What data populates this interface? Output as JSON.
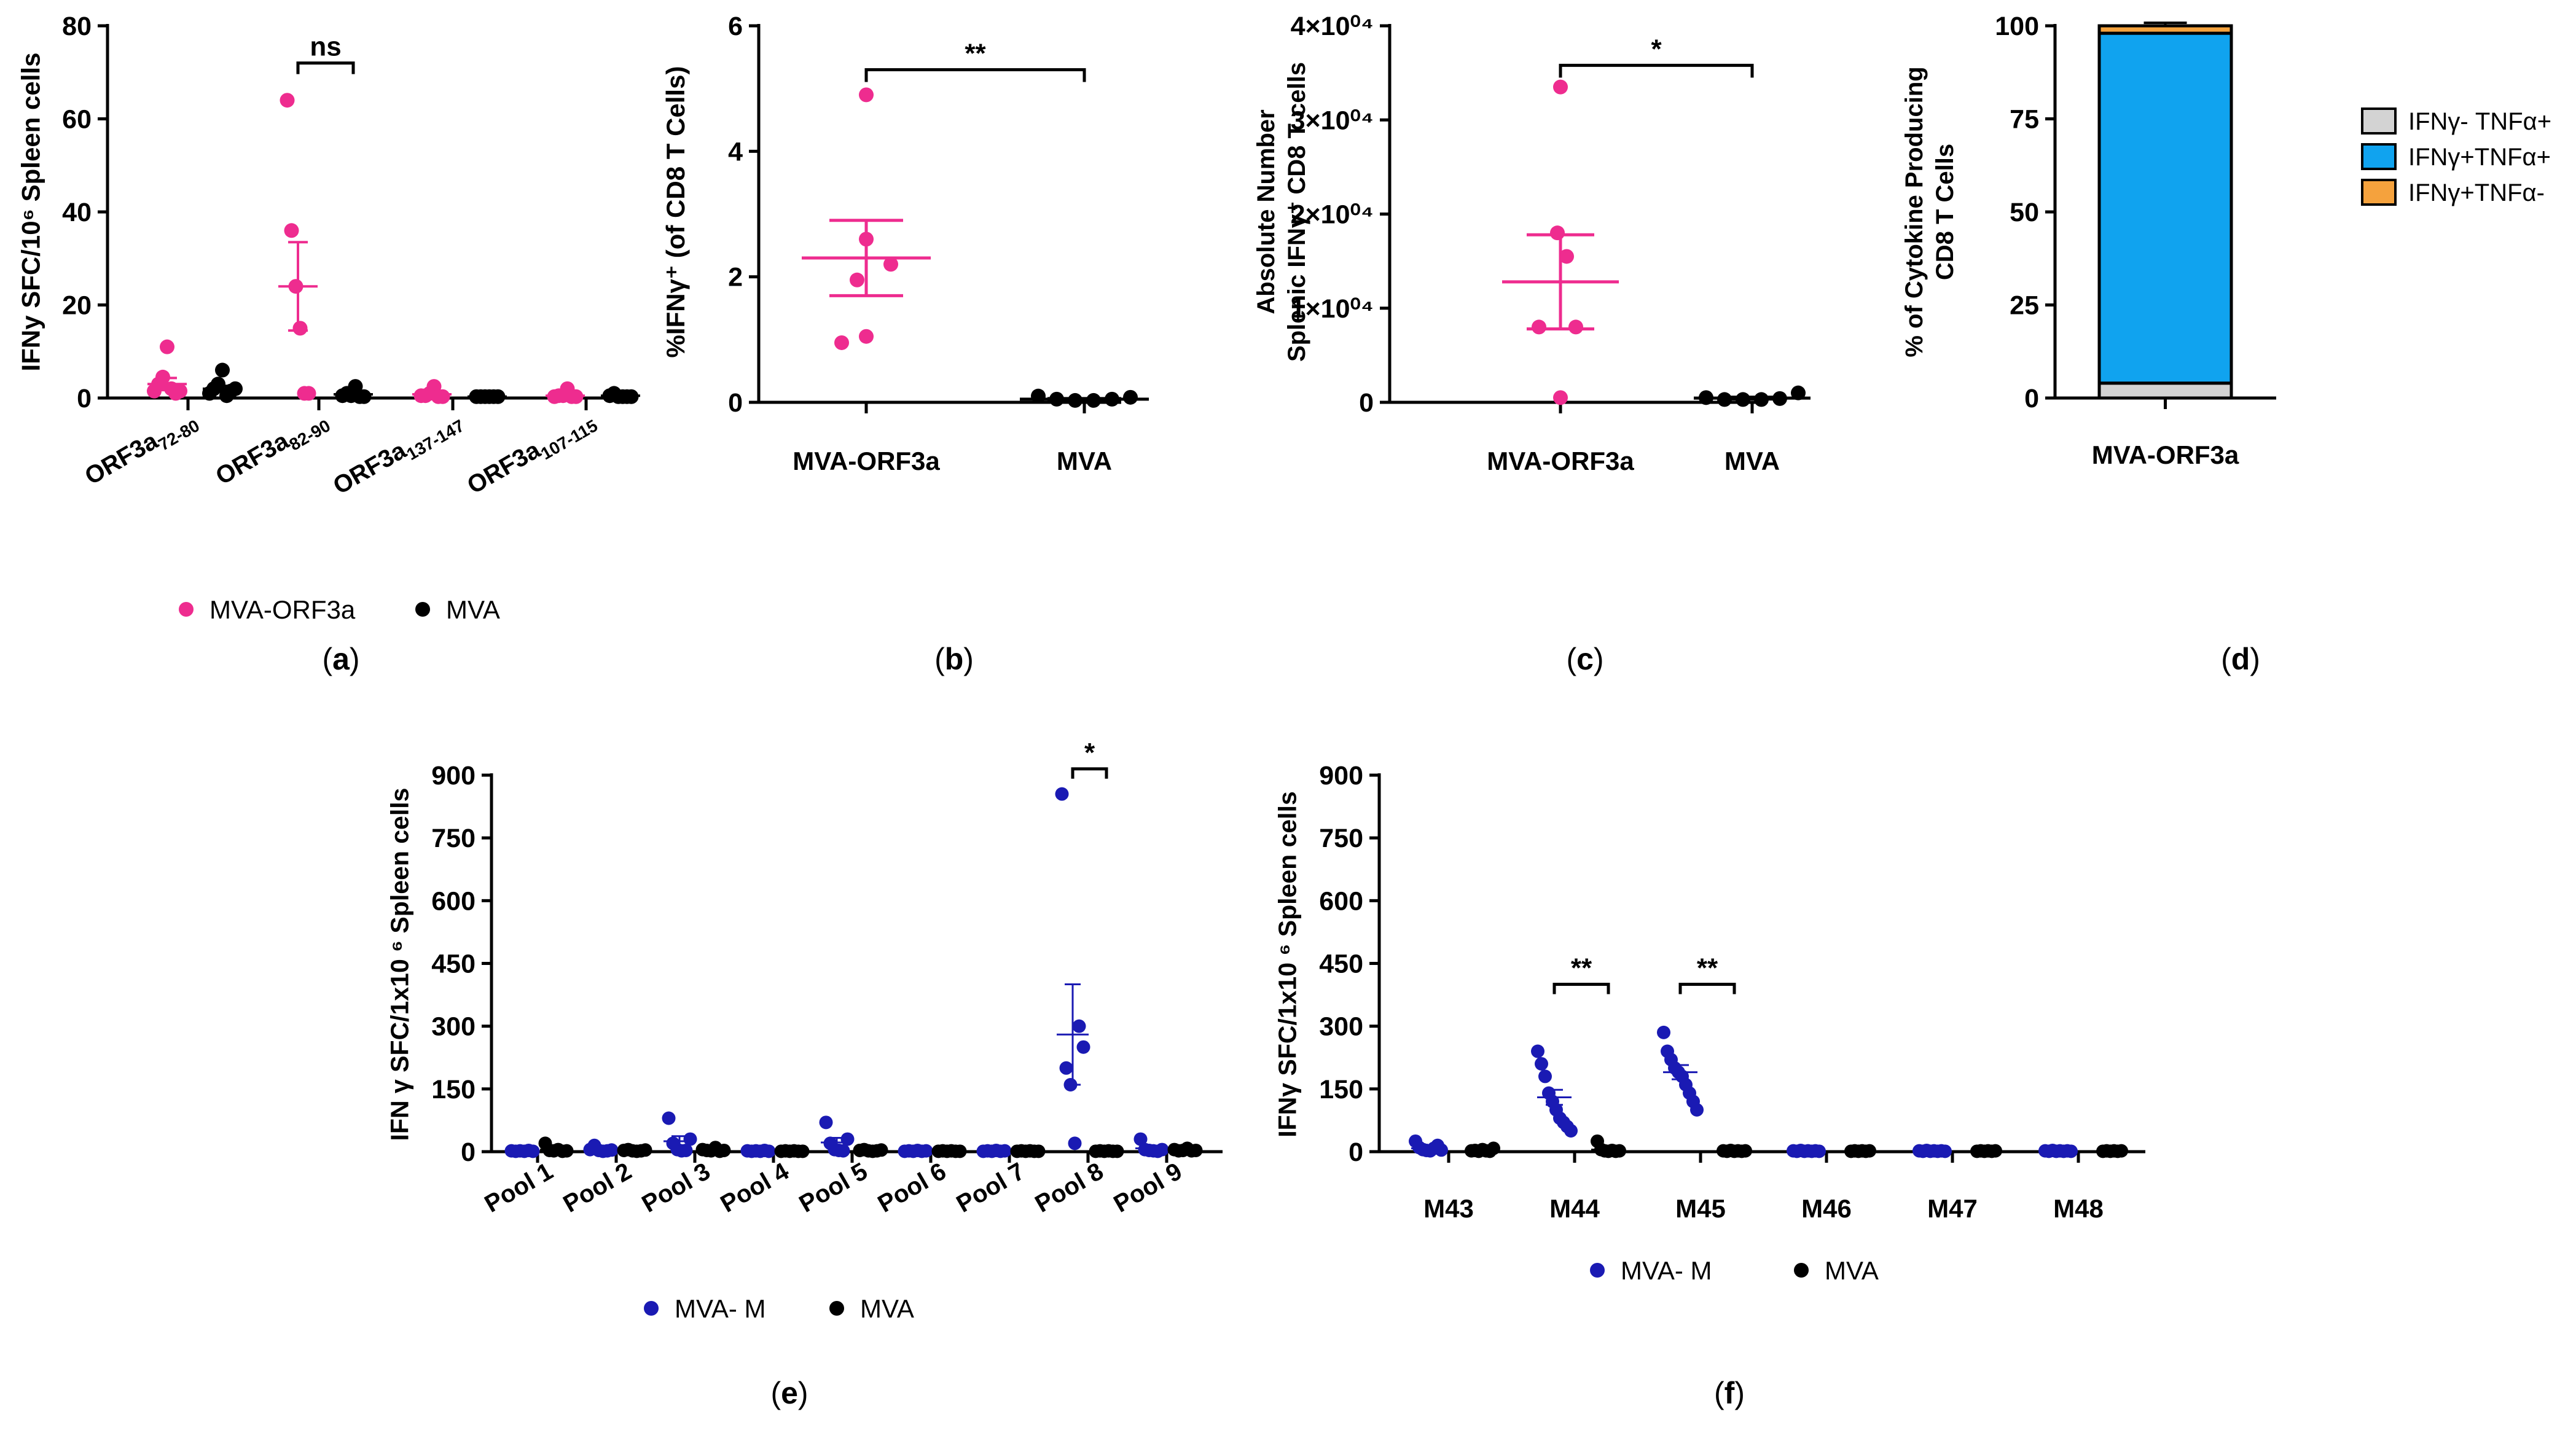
{
  "colors": {
    "pink": "#ee2c8f",
    "blue": "#1a1ab3",
    "black": "#000000",
    "gray": "#d3d3d3",
    "cyan": "#10a3ef",
    "orange": "#f5a23d"
  },
  "chart_data": [
    {
      "id": "a",
      "type": "scatter",
      "panel_label": "(a)",
      "ylabel": "IFNy SFC/10⁶ Spleen cells",
      "ylim": [
        0,
        80
      ],
      "yticks": [
        0,
        20,
        40,
        60,
        80
      ],
      "categories": [
        "ORF3a72-80",
        "ORF3a82-90",
        "ORF3a137-147",
        "ORF3a107-115"
      ],
      "category_labels": [
        {
          "base": "ORF3a",
          "sub": "72-80"
        },
        {
          "base": "ORF3a",
          "sub": "82-90"
        },
        {
          "base": "ORF3a",
          "sub": "137-147"
        },
        {
          "base": "ORF3a",
          "sub": "107-115"
        }
      ],
      "series": [
        {
          "name": "MVA-ORF3a",
          "color": "pink",
          "points": [
            [
              1.5,
              3,
              4.5,
              11,
              2,
              1,
              1.5
            ],
            [
              64,
              36,
              24,
              15,
              1,
              1
            ],
            [
              0.5,
              0.5,
              1,
              2.5,
              0.3,
              0.3
            ],
            [
              0.3,
              0.5,
              0.5,
              2,
              0.3,
              0.3
            ]
          ],
          "mean": [
            3,
            24,
            0.8,
            0.5
          ],
          "sem": [
            1.3,
            9.5,
            0.4,
            0.3
          ]
        },
        {
          "name": "MVA",
          "color": "black",
          "points": [
            [
              1,
              2,
              3,
              6,
              0.5,
              1.5,
              2
            ],
            [
              0.5,
              1,
              0.5,
              2.5,
              0.3,
              0.3
            ],
            [
              0.3,
              0.3,
              0.3,
              0.3,
              0.3,
              0.3
            ],
            [
              0.5,
              1,
              0.3,
              0.3,
              0.3,
              0.3
            ]
          ],
          "mean": [
            2,
            0.8,
            0.3,
            0.5
          ],
          "sem": [
            0.6,
            0.4,
            0.1,
            0.2
          ]
        }
      ],
      "brackets": [
        {
          "cat": 1,
          "label": "ns",
          "y": 72
        }
      ]
    },
    {
      "id": "b",
      "type": "scatter",
      "panel_label": "(b)",
      "ylabel": "%IFNγ⁺ (of CD8 T Cells)",
      "ylim": [
        0,
        6
      ],
      "yticks": [
        0,
        2,
        4,
        6
      ],
      "categories": [
        "MVA-ORF3a",
        "MVA"
      ],
      "series": [
        {
          "name": "MVA-ORF3a",
          "color": "pink",
          "group": 0,
          "points": [
            4.9,
            2.6,
            2.2,
            1.95,
            1.05,
            0.95
          ],
          "mean": 2.3,
          "sem": 0.6
        },
        {
          "name": "MVA",
          "color": "black",
          "group": 1,
          "points": [
            0.1,
            0.05,
            0.03,
            0.03,
            0.05,
            0.08
          ],
          "mean": 0.05,
          "sem": 0.01
        }
      ],
      "brackets": [
        {
          "from": 0,
          "to": 1,
          "label": "**",
          "y": 5.3
        }
      ]
    },
    {
      "id": "c",
      "type": "scatter",
      "panel_label": "(c)",
      "ylabel_lines": [
        "Absolute Number",
        "Splenic IFNγ⁺ CD8 T cells"
      ],
      "ylim": [
        0,
        40000
      ],
      "yticks": [
        0,
        10000,
        20000,
        30000,
        40000
      ],
      "ytick_labels": [
        "0",
        "1×10⁰⁴",
        "2×10⁰⁴",
        "3×10⁰⁴",
        "4×10⁰⁴"
      ],
      "categories": [
        "MVA-ORF3a",
        "MVA"
      ],
      "series": [
        {
          "name": "MVA-ORF3a",
          "color": "pink",
          "group": 0,
          "points": [
            33500,
            18000,
            15500,
            8000,
            8000,
            500
          ],
          "mean": 12800,
          "sem": 5000
        },
        {
          "name": "MVA",
          "color": "black",
          "group": 1,
          "points": [
            500,
            300,
            300,
            300,
            400,
            1000
          ],
          "mean": 450,
          "sem": 100
        }
      ],
      "brackets": [
        {
          "from": 0,
          "to": 1,
          "label": "*",
          "y": 35800
        }
      ]
    },
    {
      "id": "d",
      "type": "bar",
      "stacked": true,
      "panel_label": "(d)",
      "ylabel_lines": [
        "% of Cytokine Producing",
        "CD8 T Cells"
      ],
      "ylim": [
        0,
        100
      ],
      "yticks": [
        0,
        25,
        50,
        75,
        100
      ],
      "categories": [
        "MVA-ORF3a"
      ],
      "series": [
        {
          "name": "IFNγ- TNFα+",
          "color": "gray",
          "value": 4,
          "err": 0.8
        },
        {
          "name": "IFNγ+TNFα+",
          "color": "cyan",
          "value": 94,
          "err": 0
        },
        {
          "name": "IFNγ+TNFα-",
          "color": "orange",
          "value": 2,
          "err": 0.8
        }
      ],
      "legend": [
        "IFNγ- TNFα+",
        "IFNγ+TNFα+",
        "IFNγ+TNFα-"
      ]
    },
    {
      "id": "e",
      "type": "scatter",
      "panel_label": "(e)",
      "ylabel": "IFN γ SFC/1x10 ⁶ Spleen cells",
      "ylim": [
        0,
        900
      ],
      "yticks": [
        0,
        150,
        300,
        450,
        600,
        750,
        900
      ],
      "categories": [
        "Pool 1",
        "Pool 2",
        "Pool 3",
        "Pool 4",
        "Pool 5",
        "Pool 6",
        "Pool 7",
        "Pool 8",
        "Pool 9"
      ],
      "series": [
        {
          "name": "MVA- M",
          "color": "blue",
          "points": [
            [
              2,
              1,
              2,
              1,
              3,
              1
            ],
            [
              5,
              15,
              3,
              1,
              2,
              4
            ],
            [
              80,
              20,
              5,
              2,
              3,
              30
            ],
            [
              2,
              1,
              2,
              1,
              3,
              1
            ],
            [
              70,
              20,
              5,
              3,
              2,
              30
            ],
            [
              1,
              2,
              1,
              3,
              1,
              2
            ],
            [
              1,
              2,
              1,
              3,
              1,
              2
            ],
            [
              855,
              200,
              160,
              20,
              300,
              250
            ],
            [
              30,
              5,
              3,
              2,
              1,
              5
            ]
          ],
          "mean": [
            2,
            5,
            25,
            2,
            22,
            2,
            2,
            280,
            8
          ],
          "sem": [
            0.5,
            2,
            12,
            0.5,
            11,
            0.5,
            0.5,
            120,
            4
          ]
        },
        {
          "name": "MVA",
          "color": "black",
          "points": [
            [
              20,
              3,
              2,
              5,
              1,
              2
            ],
            [
              3,
              5,
              2,
              1,
              2,
              4
            ],
            [
              5,
              3,
              2,
              10,
              1,
              3
            ],
            [
              1,
              2,
              1,
              2,
              1,
              1
            ],
            [
              3,
              5,
              2,
              1,
              2,
              4
            ],
            [
              1,
              2,
              1,
              2,
              1,
              1
            ],
            [
              1,
              2,
              1,
              2,
              1,
              1
            ],
            [
              1,
              2,
              1,
              2,
              1,
              1
            ],
            [
              5,
              2,
              3,
              8,
              2,
              3
            ]
          ],
          "mean": [
            5,
            3,
            4,
            1,
            3,
            1,
            1,
            1,
            4
          ],
          "sem": [
            3,
            1,
            1.5,
            0.3,
            1,
            0.3,
            0.3,
            0.3,
            1
          ]
        }
      ],
      "brackets": [
        {
          "cat": 7,
          "label": "*",
          "y": 915
        }
      ]
    },
    {
      "id": "f",
      "type": "scatter",
      "panel_label": "(f)",
      "ylabel": "IFNγ SFC/1x10 ⁶ Spleen cells",
      "ylim": [
        0,
        900
      ],
      "yticks": [
        0,
        150,
        300,
        450,
        600,
        750,
        900
      ],
      "categories": [
        "M43",
        "M44",
        "M45",
        "M46",
        "M47",
        "M48"
      ],
      "series": [
        {
          "name": "MVA- M",
          "color": "blue",
          "points": [
            [
              25,
              10,
              5,
              3,
              2,
              8,
              15,
              4
            ],
            [
              240,
              210,
              180,
              140,
              120,
              100,
              80,
              70,
              60,
              50
            ],
            [
              285,
              240,
              220,
              200,
              190,
              180,
              160,
              140,
              120,
              100
            ],
            [
              2,
              1,
              3,
              1,
              2,
              1,
              2,
              1
            ],
            [
              2,
              1,
              3,
              1,
              2,
              1,
              2,
              1
            ],
            [
              2,
              1,
              3,
              1,
              2,
              1,
              2,
              1
            ]
          ],
          "mean": [
            8,
            130,
            190,
            2,
            2,
            2
          ],
          "sem": [
            3,
            18,
            17,
            0.5,
            0.5,
            0.5
          ]
        },
        {
          "name": "MVA",
          "color": "black",
          "points": [
            [
              2,
              3,
              1,
              5,
              2,
              1,
              8
            ],
            [
              25,
              5,
              2,
              1,
              3,
              1,
              2
            ],
            [
              2,
              1,
              3,
              1,
              2,
              1,
              2
            ],
            [
              1,
              2,
              1,
              2,
              1,
              2
            ],
            [
              1,
              2,
              1,
              2,
              1,
              2
            ],
            [
              1,
              2,
              1,
              2,
              1,
              2
            ]
          ],
          "mean": [
            3,
            5,
            2,
            1,
            1,
            1
          ],
          "sem": [
            1,
            3,
            0.5,
            0.3,
            0.3,
            0.3
          ]
        }
      ],
      "brackets": [
        {
          "cat": 1,
          "label": "**",
          "y": 400
        },
        {
          "cat": 2,
          "label": "**",
          "y": 400
        }
      ]
    }
  ]
}
